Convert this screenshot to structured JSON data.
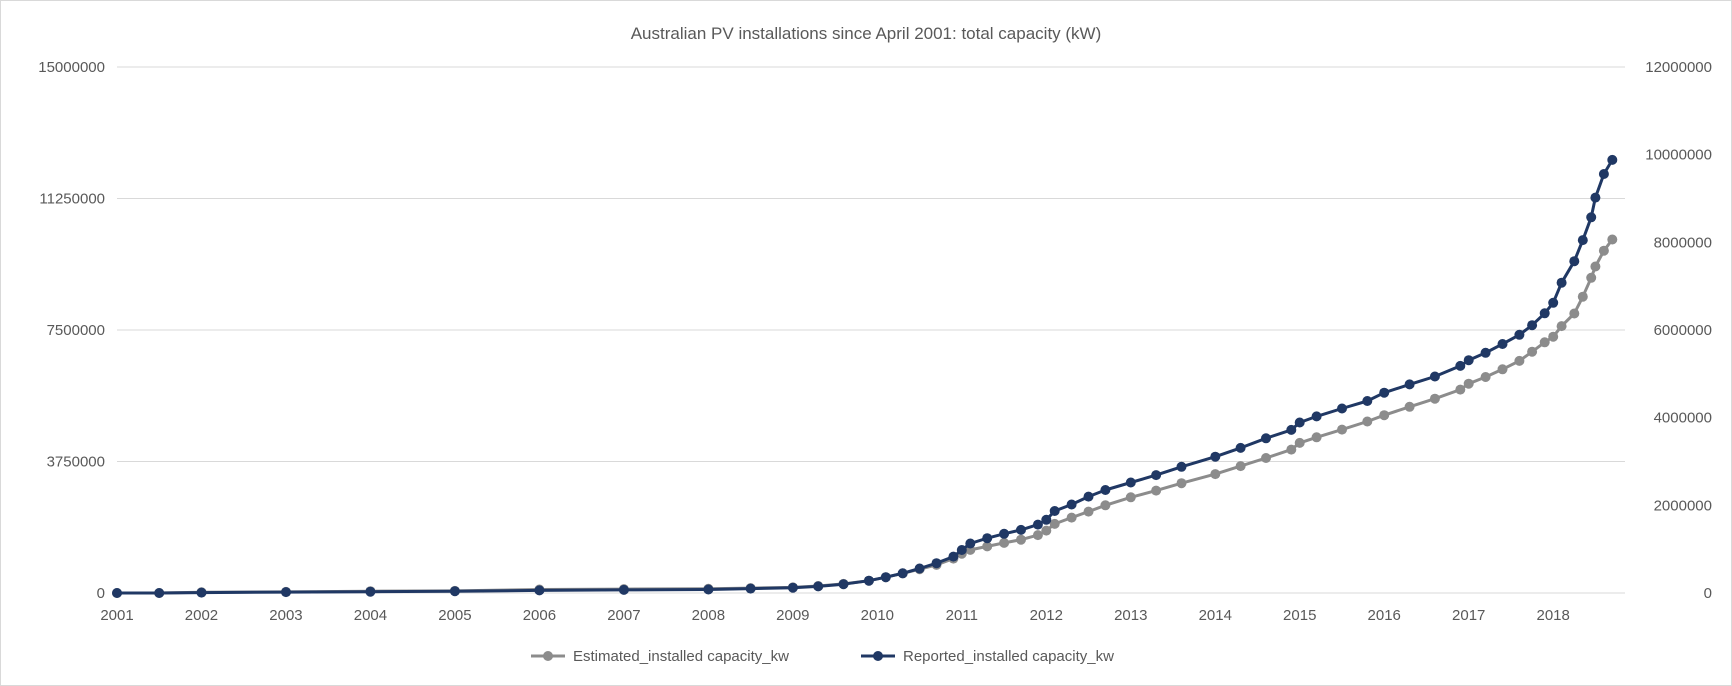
{
  "chart_data": {
    "type": "line",
    "title": "Australian PV installations since April 2001: total capacity (kW)",
    "x_ticks": [
      "2001",
      "2002",
      "2003",
      "2004",
      "2005",
      "2006",
      "2007",
      "2008",
      "2009",
      "2010",
      "2011",
      "2012",
      "2013",
      "2014",
      "2015",
      "2016",
      "2017",
      "2018"
    ],
    "x_range": [
      2001.0,
      2018.85
    ],
    "left_axis": {
      "ylim": [
        0,
        15000000
      ],
      "ticks": [
        "0",
        "3750000",
        "7500000",
        "11250000",
        "15000000"
      ]
    },
    "right_axis": {
      "ylim": [
        0,
        12000000
      ],
      "ticks": [
        "0",
        "2000000",
        "4000000",
        "6000000",
        "8000000",
        "10000000",
        "12000000"
      ]
    },
    "grid": true,
    "legend_position": "bottom",
    "series": [
      {
        "name": "Estimated_installed capacity_kw",
        "axis": "left",
        "color": "#8c8c8c",
        "x": [
          2001.0,
          2001.5,
          2002.0,
          2003.0,
          2004.0,
          2005.0,
          2006.0,
          2007.0,
          2008.0,
          2008.5,
          2009.0,
          2009.3,
          2009.6,
          2009.9,
          2010.1,
          2010.3,
          2010.5,
          2010.7,
          2010.9,
          2011.0,
          2011.1,
          2011.3,
          2011.5,
          2011.7,
          2011.9,
          2012.0,
          2012.1,
          2012.3,
          2012.5,
          2012.7,
          2013.0,
          2013.3,
          2013.6,
          2014.0,
          2014.3,
          2014.6,
          2014.9,
          2015.0,
          2015.2,
          2015.5,
          2015.8,
          2016.0,
          2016.3,
          2016.6,
          2016.9,
          2017.0,
          2017.2,
          2017.4,
          2017.6,
          2017.75,
          2017.9,
          2018.0,
          2018.1,
          2018.25,
          2018.35,
          2018.45,
          2018.5,
          2018.6,
          2018.7
        ],
        "y": [
          0,
          0,
          20000,
          30000,
          50000,
          60000,
          100000,
          110000,
          120000,
          140000,
          160000,
          200000,
          260000,
          350000,
          450000,
          560000,
          680000,
          800000,
          980000,
          1120000,
          1230000,
          1330000,
          1430000,
          1520000,
          1650000,
          1780000,
          1970000,
          2150000,
          2320000,
          2500000,
          2730000,
          2920000,
          3130000,
          3390000,
          3620000,
          3850000,
          4090000,
          4280000,
          4440000,
          4660000,
          4890000,
          5070000,
          5310000,
          5540000,
          5800000,
          5970000,
          6160000,
          6380000,
          6620000,
          6880000,
          7150000,
          7310000,
          7610000,
          7970000,
          8450000,
          8990000,
          9310000,
          9760000,
          10080000
        ]
      },
      {
        "name": "Reported_installed capacity_kw",
        "axis": "right",
        "color": "#203864",
        "x": [
          2001.0,
          2001.5,
          2002.0,
          2003.0,
          2004.0,
          2005.0,
          2006.0,
          2007.0,
          2008.0,
          2008.5,
          2009.0,
          2009.3,
          2009.6,
          2009.9,
          2010.1,
          2010.3,
          2010.5,
          2010.7,
          2010.9,
          2011.0,
          2011.1,
          2011.3,
          2011.5,
          2011.7,
          2011.9,
          2012.0,
          2012.1,
          2012.3,
          2012.5,
          2012.7,
          2013.0,
          2013.3,
          2013.6,
          2014.0,
          2014.3,
          2014.6,
          2014.9,
          2015.0,
          2015.2,
          2015.5,
          2015.8,
          2016.0,
          2016.3,
          2016.6,
          2016.9,
          2017.0,
          2017.2,
          2017.4,
          2017.6,
          2017.75,
          2017.9,
          2018.0,
          2018.1,
          2018.25,
          2018.35,
          2018.45,
          2018.5,
          2018.6,
          2018.7
        ],
        "y": [
          0,
          0,
          10000,
          20000,
          30000,
          40000,
          60000,
          70000,
          80000,
          100000,
          120000,
          150000,
          200000,
          280000,
          360000,
          450000,
          560000,
          680000,
          830000,
          980000,
          1130000,
          1250000,
          1350000,
          1440000,
          1560000,
          1670000,
          1870000,
          2020000,
          2200000,
          2350000,
          2520000,
          2690000,
          2880000,
          3110000,
          3310000,
          3530000,
          3720000,
          3890000,
          4030000,
          4210000,
          4380000,
          4570000,
          4760000,
          4940000,
          5180000,
          5310000,
          5480000,
          5680000,
          5890000,
          6110000,
          6380000,
          6620000,
          7080000,
          7570000,
          8050000,
          8570000,
          9020000,
          9560000,
          9880000
        ]
      }
    ]
  }
}
